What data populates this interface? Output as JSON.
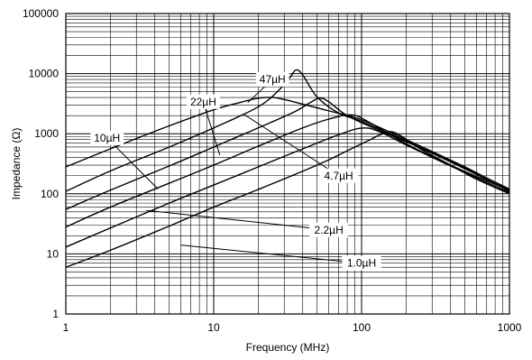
{
  "chart_data": {
    "type": "line",
    "title": "",
    "xlabel": "Frequency (MHz)",
    "ylabel": "Impedance (Ω)",
    "x_scale": "log",
    "y_scale": "log",
    "xlim": [
      1,
      1000
    ],
    "ylim": [
      1,
      100000
    ],
    "grid": true,
    "x_ticks": [
      {
        "value": 1,
        "label": "1"
      },
      {
        "value": 10,
        "label": "10"
      },
      {
        "value": 100,
        "label": "100"
      },
      {
        "value": 1000,
        "label": "1000"
      }
    ],
    "y_ticks": [
      {
        "value": 1,
        "label": "1"
      },
      {
        "value": 10,
        "label": "10"
      },
      {
        "value": 100,
        "label": "100"
      },
      {
        "value": 1000,
        "label": "1000"
      },
      {
        "value": 10000,
        "label": "10000"
      },
      {
        "value": 100000,
        "label": "100000"
      }
    ],
    "series": [
      {
        "name": "1.0µH",
        "label_at": [
          100,
          7
        ],
        "leader_to": [
          6,
          14
        ],
        "points": [
          [
            1,
            6
          ],
          [
            2,
            11.5
          ],
          [
            5,
            29
          ],
          [
            10,
            60
          ],
          [
            20,
            118
          ],
          [
            50,
            300
          ],
          [
            80,
            520
          ],
          [
            110,
            760
          ],
          [
            140,
            1000
          ],
          [
            170,
            1030
          ],
          [
            250,
            560
          ],
          [
            400,
            300
          ],
          [
            600,
            175
          ],
          [
            1000,
            100
          ]
        ]
      },
      {
        "name": "2.2µH",
        "label_at": [
          60,
          25
        ],
        "leader_to": [
          3.5,
          53
        ],
        "points": [
          [
            1,
            13
          ],
          [
            2,
            27
          ],
          [
            5,
            70
          ],
          [
            10,
            140
          ],
          [
            20,
            280
          ],
          [
            40,
            560
          ],
          [
            70,
            960
          ],
          [
            100,
            1240
          ],
          [
            130,
            1100
          ],
          [
            200,
            650
          ],
          [
            400,
            290
          ],
          [
            700,
            155
          ],
          [
            1000,
            105
          ]
        ]
      },
      {
        "name": "4.7µH",
        "label_at": [
          70,
          200
        ],
        "leader_to": [
          16,
          2100
        ],
        "points": [
          [
            1,
            28
          ],
          [
            2,
            60
          ],
          [
            5,
            150
          ],
          [
            10,
            300
          ],
          [
            20,
            620
          ],
          [
            40,
            1250
          ],
          [
            60,
            1750
          ],
          [
            85,
            2050
          ],
          [
            110,
            1600
          ],
          [
            200,
            680
          ],
          [
            400,
            300
          ],
          [
            700,
            165
          ],
          [
            1000,
            115
          ]
        ]
      },
      {
        "name": "10µH",
        "label_at": [
          1.9,
          850
        ],
        "leader_to": [
          4.2,
          120
        ],
        "points": [
          [
            1,
            55
          ],
          [
            2,
            115
          ],
          [
            5,
            290
          ],
          [
            10,
            600
          ],
          [
            20,
            1250
          ],
          [
            35,
            2300
          ],
          [
            45,
            3300
          ],
          [
            52,
            3900
          ],
          [
            60,
            3400
          ],
          [
            80,
            2000
          ],
          [
            130,
            1150
          ],
          [
            250,
            580
          ],
          [
            500,
            260
          ],
          [
            1000,
            110
          ]
        ]
      },
      {
        "name": "22µH",
        "label_at": [
          8.5,
          3400
        ],
        "leader_to": [
          11,
          440
        ],
        "points": [
          [
            1,
            110
          ],
          [
            2,
            240
          ],
          [
            5,
            600
          ],
          [
            10,
            1250
          ],
          [
            20,
            2800
          ],
          [
            28,
            5500
          ],
          [
            33,
            8800
          ],
          [
            36,
            11500
          ],
          [
            40,
            9500
          ],
          [
            50,
            4100
          ],
          [
            70,
            2200
          ],
          [
            100,
            1600
          ],
          [
            200,
            760
          ],
          [
            500,
            270
          ],
          [
            1000,
            120
          ]
        ]
      },
      {
        "name": "47µH",
        "label_at": [
          25,
          8000
        ],
        "leader_to": [
          17,
          3300
        ],
        "points": [
          [
            1,
            280
          ],
          [
            2,
            560
          ],
          [
            5,
            1350
          ],
          [
            10,
            2500
          ],
          [
            15,
            3300
          ],
          [
            20,
            3900
          ],
          [
            25,
            4000
          ],
          [
            30,
            3700
          ],
          [
            40,
            3100
          ],
          [
            60,
            2400
          ],
          [
            100,
            1700
          ],
          [
            200,
            800
          ],
          [
            500,
            280
          ],
          [
            1000,
            115
          ]
        ]
      }
    ]
  }
}
